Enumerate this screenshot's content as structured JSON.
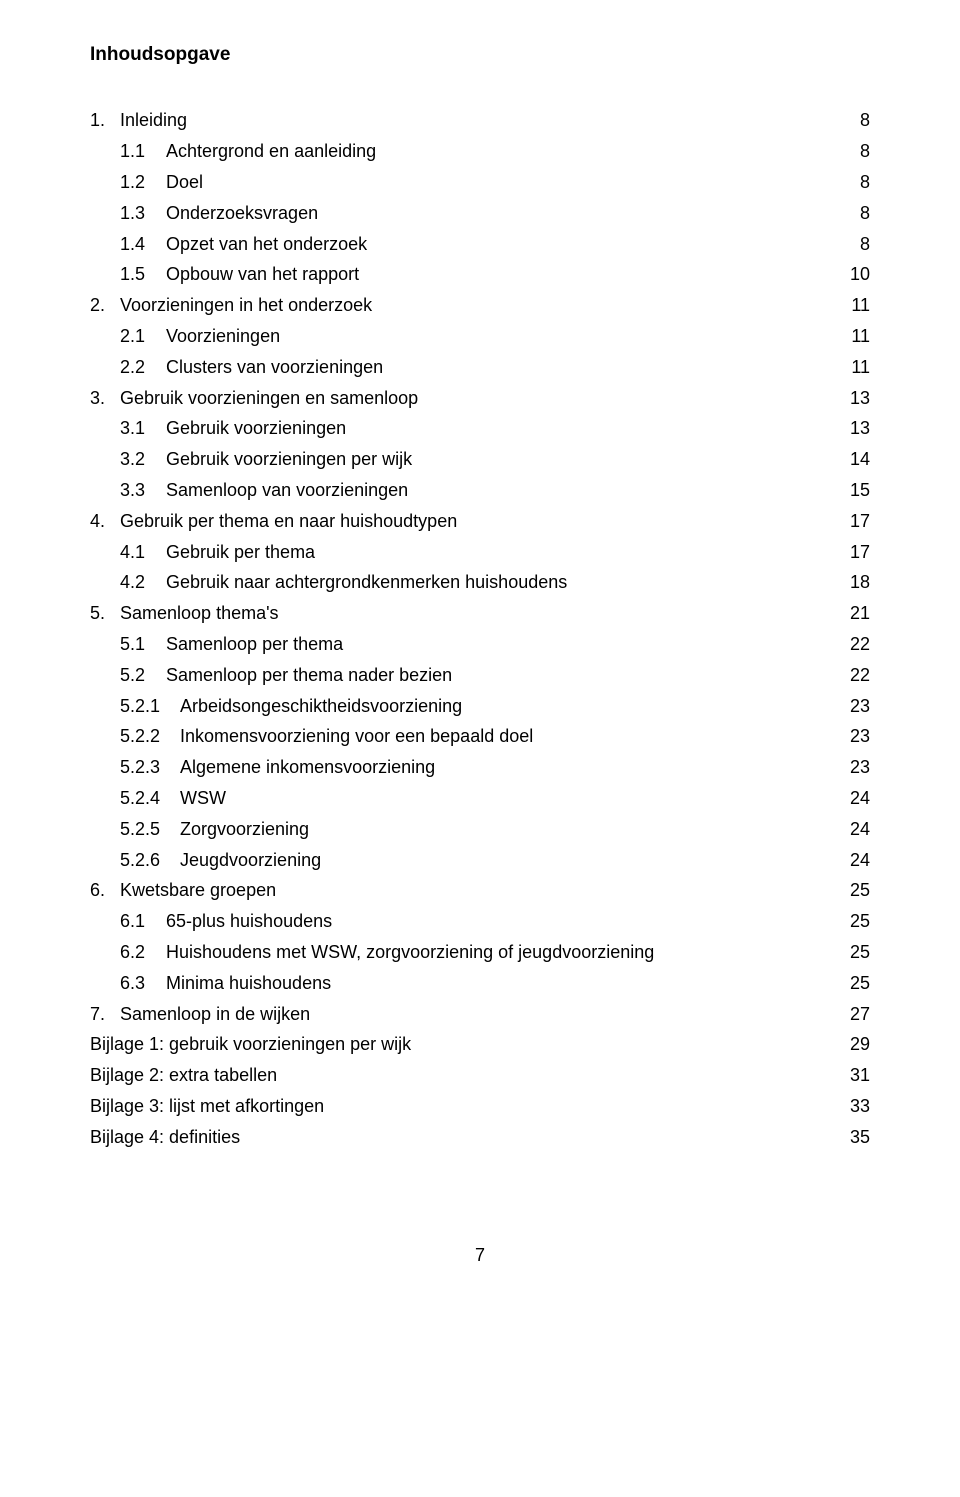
{
  "title": "Inhoudsopgave",
  "footer_page": "7",
  "toc": [
    {
      "level": 1,
      "num": "1.",
      "label": "Inleiding",
      "page": "8"
    },
    {
      "level": 2,
      "num": "1.1",
      "label": "Achtergrond en aanleiding",
      "page": "8"
    },
    {
      "level": 2,
      "num": "1.2",
      "label": "Doel",
      "page": "8"
    },
    {
      "level": 2,
      "num": "1.3",
      "label": "Onderzoeksvragen",
      "page": "8"
    },
    {
      "level": 2,
      "num": "1.4",
      "label": "Opzet van het onderzoek",
      "page": "8"
    },
    {
      "level": 2,
      "num": "1.5",
      "label": "Opbouw van het rapport",
      "page": "10"
    },
    {
      "level": 1,
      "num": "2.",
      "label": "Voorzieningen in het onderzoek",
      "page": "11"
    },
    {
      "level": 2,
      "num": "2.1",
      "label": "Voorzieningen",
      "page": "11"
    },
    {
      "level": 2,
      "num": "2.2",
      "label": "Clusters van voorzieningen",
      "page": "11"
    },
    {
      "level": 1,
      "num": "3.",
      "label": "Gebruik voorzieningen en samenloop",
      "page": "13"
    },
    {
      "level": 2,
      "num": "3.1",
      "label": "Gebruik voorzieningen",
      "page": "13"
    },
    {
      "level": 2,
      "num": "3.2",
      "label": "Gebruik voorzieningen per wijk",
      "page": "14"
    },
    {
      "level": 2,
      "num": "3.3",
      "label": "Samenloop van voorzieningen",
      "page": "15"
    },
    {
      "level": 1,
      "num": "4.",
      "label": "Gebruik per thema en naar huishoudtypen",
      "page": "17"
    },
    {
      "level": 2,
      "num": "4.1",
      "label": "Gebruik per thema",
      "page": "17"
    },
    {
      "level": 2,
      "num": "4.2",
      "label": "Gebruik naar achtergrondkenmerken huishoudens",
      "page": "18"
    },
    {
      "level": 1,
      "num": "5.",
      "label": "Samenloop thema's",
      "page": "21"
    },
    {
      "level": 2,
      "num": "5.1",
      "label": "Samenloop per thema",
      "page": "22"
    },
    {
      "level": 2,
      "num": "5.2",
      "label": "Samenloop per thema nader bezien",
      "page": "22"
    },
    {
      "level": 3,
      "num": "5.2.1",
      "label": "Arbeidsongeschiktheidsvoorziening",
      "page": "23"
    },
    {
      "level": 3,
      "num": "5.2.2",
      "label": "Inkomensvoorziening voor een bepaald doel",
      "page": "23"
    },
    {
      "level": 3,
      "num": "5.2.3",
      "label": "Algemene inkomensvoorziening",
      "page": "23"
    },
    {
      "level": 3,
      "num": "5.2.4",
      "label": "WSW",
      "page": "24"
    },
    {
      "level": 3,
      "num": "5.2.5",
      "label": "Zorgvoorziening",
      "page": "24"
    },
    {
      "level": 3,
      "num": "5.2.6",
      "label": "Jeugdvoorziening",
      "page": "24"
    },
    {
      "level": 1,
      "num": "6.",
      "label": "Kwetsbare groepen",
      "page": "25"
    },
    {
      "level": 2,
      "num": "6.1",
      "label": "65-plus huishoudens",
      "page": "25"
    },
    {
      "level": 2,
      "num": "6.2",
      "label": "Huishoudens met WSW, zorgvoorziening of jeugdvoorziening",
      "page": "25"
    },
    {
      "level": 2,
      "num": "6.3",
      "label": "Minima huishoudens",
      "page": "25"
    },
    {
      "level": 1,
      "num": "7.",
      "label": "Samenloop in de wijken",
      "page": "27"
    },
    {
      "level": 0,
      "num": "",
      "label": "Bijlage 1: gebruik voorzieningen per wijk",
      "page": "29"
    },
    {
      "level": 0,
      "num": "",
      "label": "Bijlage 2: extra tabellen",
      "page": "31"
    },
    {
      "level": 0,
      "num": "",
      "label": "Bijlage 3: lijst met afkortingen",
      "page": "33"
    },
    {
      "level": 0,
      "num": "",
      "label": "Bijlage 4: definities",
      "page": "35"
    }
  ]
}
